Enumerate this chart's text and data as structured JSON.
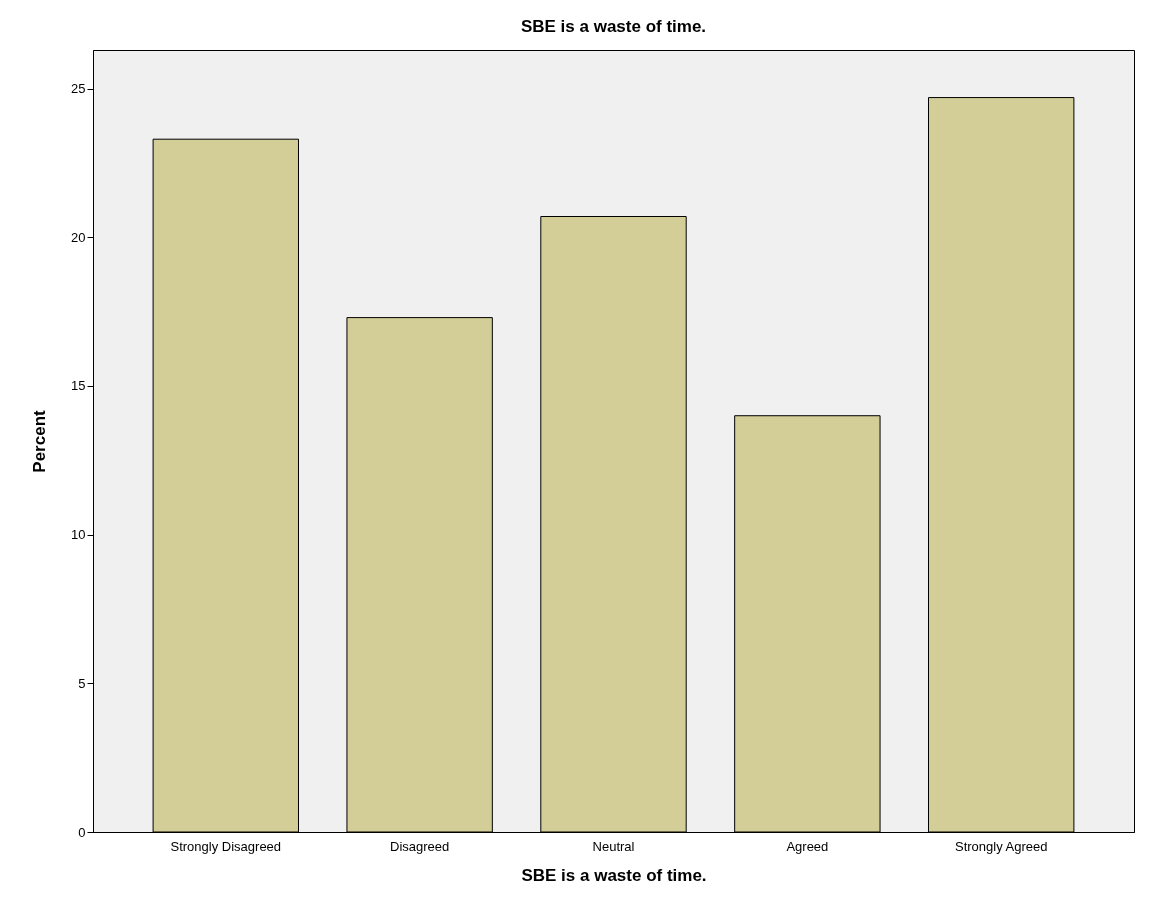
{
  "chart_data": {
    "type": "bar",
    "title": "SBE is a waste of time.",
    "xlabel": "SBE is a waste of time.",
    "ylabel": "Percent",
    "categories": [
      "Strongly Disagreed",
      "Disagreed",
      "Neutral",
      "Agreed",
      "Strongly Agreed"
    ],
    "values": [
      23.3,
      17.3,
      20.7,
      14.0,
      24.7
    ],
    "color": "#d3ce98",
    "ylim": [
      0,
      26.3
    ],
    "yticks": [
      0,
      5,
      10,
      15,
      20,
      25
    ]
  }
}
